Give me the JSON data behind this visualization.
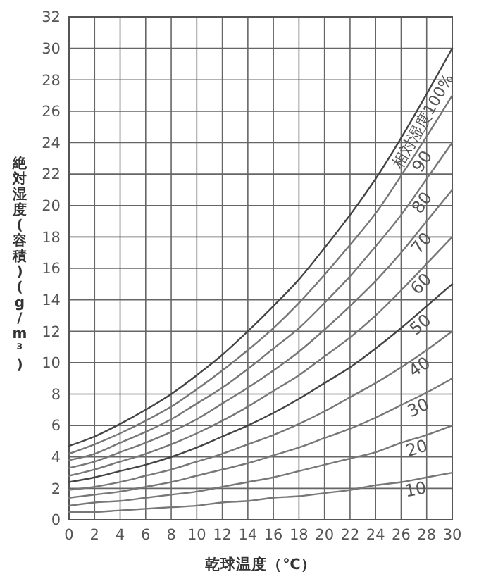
{
  "chart_data": {
    "type": "line",
    "xlabel": "乾球温度（℃）",
    "ylabel": "絶対湿度(容積)　(g/m³)",
    "x": [
      0,
      2,
      4,
      6,
      8,
      10,
      12,
      14,
      16,
      18,
      20,
      22,
      24,
      26,
      28,
      30
    ],
    "xlim": [
      0,
      30
    ],
    "xticks": [
      0,
      2,
      4,
      6,
      8,
      10,
      12,
      14,
      16,
      18,
      20,
      22,
      24,
      26,
      28,
      30
    ],
    "ylim": [
      0,
      32
    ],
    "yticks": [
      0,
      2,
      4,
      6,
      8,
      10,
      12,
      14,
      16,
      18,
      20,
      22,
      24,
      26,
      28,
      30,
      32
    ],
    "grid": true,
    "marker": "none",
    "line_style": "solid",
    "series": [
      {
        "name": "相対湿度100%",
        "color": "#444444",
        "values": [
          4.7,
          5.3,
          6.1,
          7.0,
          8.0,
          9.2,
          10.5,
          12.0,
          13.6,
          15.3,
          17.3,
          19.4,
          21.7,
          24.3,
          27.1,
          30.0
        ]
      },
      {
        "name": "90",
        "color": "#777777",
        "values": [
          4.2,
          4.8,
          5.5,
          6.3,
          7.2,
          8.3,
          9.5,
          10.8,
          12.2,
          13.8,
          15.6,
          17.5,
          19.5,
          21.9,
          24.4,
          27.0
        ]
      },
      {
        "name": "80",
        "color": "#777777",
        "values": [
          3.8,
          4.2,
          4.9,
          5.6,
          6.4,
          7.4,
          8.4,
          9.6,
          10.9,
          12.2,
          13.8,
          15.5,
          17.4,
          19.4,
          21.7,
          24.0
        ]
      },
      {
        "name": "70",
        "color": "#777777",
        "values": [
          3.3,
          3.7,
          4.3,
          4.9,
          5.6,
          6.4,
          7.4,
          8.4,
          9.5,
          10.7,
          12.1,
          13.6,
          15.2,
          17.0,
          19.0,
          21.0
        ]
      },
      {
        "name": "60",
        "color": "#777777",
        "values": [
          2.8,
          3.2,
          3.7,
          4.2,
          4.8,
          5.5,
          6.3,
          7.2,
          8.2,
          9.2,
          10.4,
          11.6,
          13.0,
          14.6,
          16.3,
          18.0
        ]
      },
      {
        "name": "50",
        "color": "#444444",
        "values": [
          2.4,
          2.7,
          3.1,
          3.5,
          4.0,
          4.6,
          5.3,
          6.0,
          6.8,
          7.7,
          8.7,
          9.7,
          10.9,
          12.2,
          13.6,
          15.0
        ]
      },
      {
        "name": "40",
        "color": "#777777",
        "values": [
          1.9,
          2.1,
          2.4,
          2.8,
          3.2,
          3.7,
          4.2,
          4.8,
          5.4,
          6.1,
          6.9,
          7.8,
          8.7,
          9.7,
          10.8,
          12.0
        ]
      },
      {
        "name": "30",
        "color": "#777777",
        "values": [
          1.4,
          1.6,
          1.8,
          2.1,
          2.4,
          2.8,
          3.2,
          3.6,
          4.1,
          4.6,
          5.2,
          5.8,
          6.5,
          7.3,
          8.1,
          9.0
        ]
      },
      {
        "name": "20",
        "color": "#777777",
        "values": [
          0.9,
          1.1,
          1.2,
          1.4,
          1.6,
          1.8,
          2.1,
          2.4,
          2.7,
          3.1,
          3.5,
          3.9,
          4.3,
          4.9,
          5.4,
          6.0
        ]
      },
      {
        "name": "10",
        "color": "#777777",
        "values": [
          0.5,
          0.5,
          0.6,
          0.7,
          0.8,
          0.9,
          1.1,
          1.2,
          1.4,
          1.5,
          1.7,
          1.9,
          2.2,
          2.4,
          2.7,
          3.0
        ]
      }
    ]
  }
}
